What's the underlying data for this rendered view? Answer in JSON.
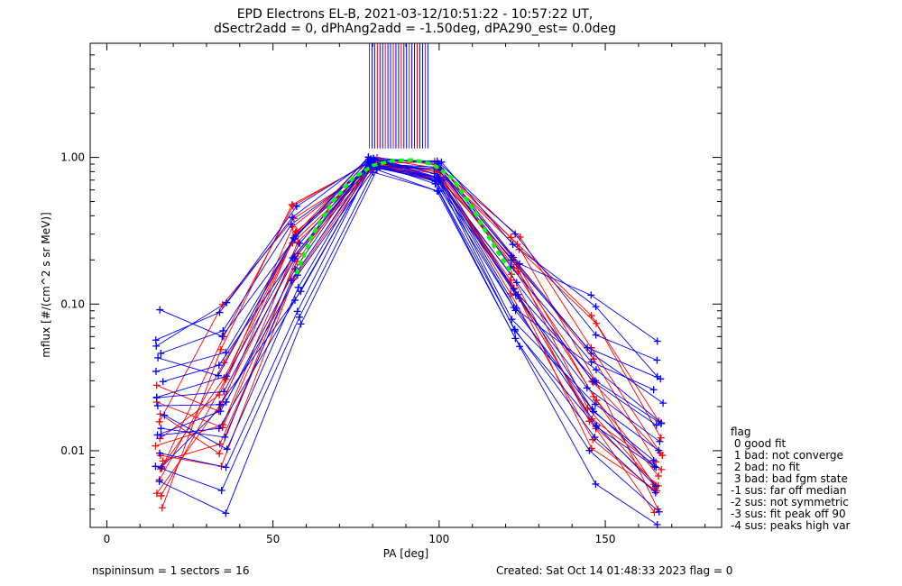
{
  "title": {
    "line1": "EPD Electrons EL-B, 2021-03-12/10:51:22 - 10:57:22 UT,",
    "line2": "dSectr2add = 0, dPhAng2add = -1.50deg, dPA290_est=   0.0deg"
  },
  "footer": {
    "left": "nspininsum =  1  sectors = 16",
    "right": "Created: Sat Oct 14 01:48:33 2023   flag = 0"
  },
  "legend": {
    "title": "flag",
    "items": [
      " 0 good fit",
      " 1 bad: not converge",
      " 2 bad: no fit",
      " 3 bad: bad fgm state",
      "-1 sus: far off median",
      "-2 sus: not symmetric",
      "-3 sus: fit peak off 90",
      "-4 sus: peaks high var"
    ]
  },
  "colors": {
    "red": "#ff0000",
    "blue": "#0000ff",
    "green": "#00ff00"
  },
  "chart_data": {
    "type": "line",
    "xlabel": "PA [deg]",
    "ylabel": "mflux [#/(cm^2 s sr MeV)]",
    "xlim": [
      -5,
      185
    ],
    "ylim": [
      0.003,
      6
    ],
    "yscale": "log",
    "xticks": [
      0,
      50,
      100,
      150
    ],
    "yticks": [
      {
        "value": 0.01,
        "label": "0.01"
      },
      {
        "value": 0.1,
        "label": "0.10"
      },
      {
        "value": 1.0,
        "label": "1.00"
      }
    ],
    "pa_bins": [
      16,
      35,
      57,
      80,
      100,
      123,
      146,
      166
    ],
    "series_groups": [
      {
        "color": "red",
        "profiles": [
          [
            0.012,
            0.025,
            0.3,
            0.95,
            0.85,
            0.2,
            0.025,
            0.007
          ],
          [
            0.008,
            0.06,
            0.5,
            0.93,
            0.9,
            0.3,
            0.05,
            0.01
          ],
          [
            0.02,
            0.015,
            0.2,
            0.9,
            0.7,
            0.15,
            0.015,
            0.006
          ],
          [
            0.005,
            0.03,
            0.35,
            0.96,
            0.95,
            0.25,
            0.03,
            0.004
          ],
          [
            0.015,
            0.1,
            0.4,
            0.92,
            0.8,
            0.22,
            0.07,
            0.012
          ],
          [
            0.01,
            0.008,
            0.15,
            0.88,
            0.75,
            0.12,
            0.012,
            0.005
          ],
          [
            0.006,
            0.04,
            0.25,
            0.94,
            0.82,
            0.18,
            0.04,
            0.008
          ],
          [
            0.03,
            0.02,
            0.3,
            0.91,
            0.78,
            0.2,
            0.02,
            0.006
          ],
          [
            0.009,
            0.012,
            0.18,
            0.95,
            0.72,
            0.14,
            0.01,
            0.005
          ],
          [
            0.004,
            0.05,
            0.45,
            0.97,
            0.86,
            0.28,
            0.085,
            0.015
          ],
          [
            0.018,
            0.009,
            0.22,
            0.89,
            0.68,
            0.11,
            0.016,
            0.007
          ],
          [
            0.007,
            0.03,
            0.33,
            0.93,
            0.8,
            0.16,
            0.03,
            0.009
          ],
          [
            0.011,
            0.014,
            0.28,
            0.9,
            0.83,
            0.19,
            0.022,
            0.006
          ],
          [
            0.005,
            0.02,
            0.2,
            0.95,
            0.7,
            0.13,
            0.014,
            0.004
          ]
        ]
      },
      {
        "color": "blue",
        "profiles": [
          [
            0.095,
            0.06,
            0.3,
            0.97,
            0.9,
            0.2,
            0.12,
            0.06
          ],
          [
            0.05,
            0.11,
            0.48,
            1.0,
            0.93,
            0.25,
            0.09,
            0.03
          ],
          [
            0.03,
            0.04,
            0.2,
            0.92,
            0.75,
            0.1,
            0.035,
            0.015
          ],
          [
            0.02,
            0.02,
            0.12,
            0.88,
            0.7,
            0.08,
            0.02,
            0.01
          ],
          [
            0.013,
            0.015,
            0.1,
            0.9,
            0.65,
            0.07,
            0.015,
            0.008
          ],
          [
            0.008,
            0.005,
            0.08,
            0.85,
            0.62,
            0.06,
            0.01,
            0.004
          ],
          [
            0.045,
            0.07,
            0.35,
            0.95,
            0.88,
            0.22,
            0.045,
            0.02
          ],
          [
            0.025,
            0.03,
            0.25,
            0.93,
            0.8,
            0.15,
            0.03,
            0.014
          ],
          [
            0.015,
            0.012,
            0.15,
            0.9,
            0.72,
            0.09,
            0.018,
            0.008
          ],
          [
            0.06,
            0.09,
            0.4,
            0.98,
            0.9,
            0.3,
            0.06,
            0.04
          ],
          [
            0.01,
            0.008,
            0.09,
            0.87,
            0.66,
            0.07,
            0.012,
            0.005
          ],
          [
            0.035,
            0.05,
            0.3,
            0.94,
            0.84,
            0.18,
            0.04,
            0.025
          ],
          [
            0.006,
            0.004,
            0.07,
            0.86,
            0.6,
            0.05,
            0.006,
            0.003
          ],
          [
            0.022,
            0.025,
            0.2,
            0.91,
            0.78,
            0.12,
            0.025,
            0.012
          ],
          [
            0.012,
            0.018,
            0.16,
            0.93,
            0.74,
            0.11,
            0.02,
            0.009
          ],
          [
            0.04,
            0.035,
            0.28,
            0.96,
            0.86,
            0.2,
            0.05,
            0.03
          ],
          [
            0.018,
            0.01,
            0.14,
            0.89,
            0.7,
            0.09,
            0.014,
            0.006
          ],
          [
            0.008,
            0.022,
            0.18,
            0.92,
            0.76,
            0.13,
            0.028,
            0.016
          ]
        ]
      }
    ],
    "fit_curve": {
      "color": "green",
      "x": [
        57,
        62,
        68,
        74,
        80,
        86,
        92,
        98,
        104,
        110,
        116,
        122
      ],
      "y": [
        0.16,
        0.3,
        0.5,
        0.72,
        0.88,
        0.95,
        0.96,
        0.9,
        0.72,
        0.45,
        0.26,
        0.16
      ]
    },
    "peak_markers": {
      "x_range": [
        79,
        97
      ],
      "y_from": 1.15,
      "y_to": 6
    }
  }
}
